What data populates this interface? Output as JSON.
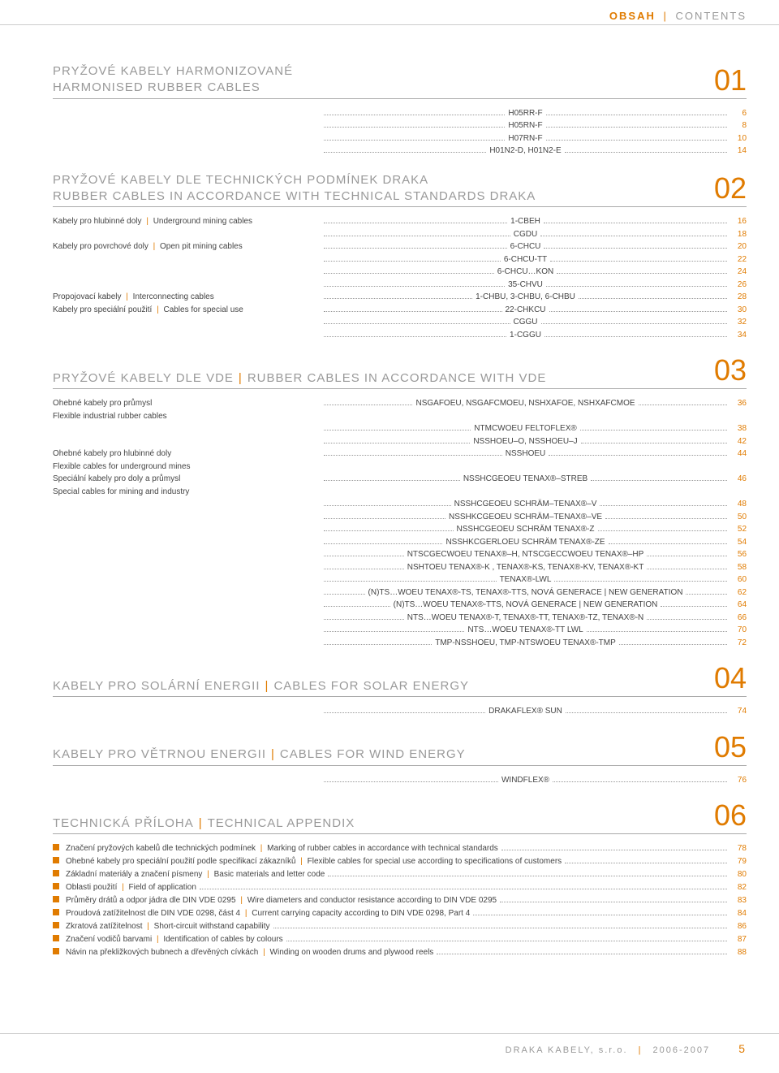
{
  "header": {
    "left": "OBSAH",
    "right": "CONTENTS"
  },
  "sections": [
    {
      "num": "01",
      "title_cz": "PRYŽOVÉ KABELY HARMONIZOVANÉ",
      "title_en": "HARMONISED RUBBER CABLES",
      "two_line": true,
      "entries": [
        {
          "left_cz": "",
          "left_en": "",
          "prod": "H05RR-F",
          "page": "6"
        },
        {
          "left_cz": "",
          "left_en": "",
          "prod": "H05RN-F",
          "page": "8"
        },
        {
          "left_cz": "",
          "left_en": "",
          "prod": "H07RN-F",
          "page": "10"
        },
        {
          "left_cz": "",
          "left_en": "",
          "prod": "H01N2-D, H01N2-E",
          "page": "14"
        }
      ]
    },
    {
      "num": "02",
      "title_cz": "PRYŽOVÉ KABELY DLE TECHNICKÝCH PODMÍNEK DRAKA",
      "title_en": "RUBBER CABLES IN ACCORDANCE WITH TECHNICAL STANDARDS DRAKA",
      "two_line": true,
      "entries": [
        {
          "left_cz": "Kabely pro hlubinné doly",
          "left_en": "Underground mining cables",
          "prod": "1-CBEH",
          "page": "16"
        },
        {
          "left_cz": "",
          "left_en": "",
          "prod": "CGDU",
          "page": "18"
        },
        {
          "left_cz": "Kabely pro povrchové doly",
          "left_en": "Open pit mining cables",
          "prod": "6-CHCU",
          "page": "20"
        },
        {
          "left_cz": "",
          "left_en": "",
          "prod": "6-CHCU-TT",
          "page": "22"
        },
        {
          "left_cz": "",
          "left_en": "",
          "prod": "6-CHCU…KON",
          "page": "24"
        },
        {
          "left_cz": "",
          "left_en": "",
          "prod": "35-CHVU",
          "page": "26"
        },
        {
          "left_cz": "Propojovací kabely",
          "left_en": "Interconnecting cables",
          "prod": "1-CHBU, 3-CHBU, 6-CHBU",
          "page": "28"
        },
        {
          "left_cz": "Kabely pro speciální použití",
          "left_en": "Cables for special use",
          "prod": "22-CHKCU",
          "page": "30"
        },
        {
          "left_cz": "",
          "left_en": "",
          "prod": "CGGU",
          "page": "32"
        },
        {
          "left_cz": "",
          "left_en": "",
          "prod": "1-CGGU",
          "page": "34"
        }
      ]
    },
    {
      "num": "03",
      "title_cz": "PRYŽOVÉ KABELY DLE VDE",
      "title_en": "RUBBER CABLES IN ACCORDANCE WITH VDE",
      "two_line": false,
      "entries": [
        {
          "left_cz": "Ohebné kabely pro průmysl",
          "left_en": "",
          "prod": "NSGAFOEU, NSGAFCMOEU, NSHXAFOE, NSHXAFCMOE",
          "page": "36",
          "sub_en": "Flexible industrial rubber cables"
        },
        {
          "left_cz": "",
          "left_en": "",
          "prod": "NTMCWOEU FELTOFLEX®",
          "page": "38"
        },
        {
          "left_cz": "",
          "left_en": "",
          "prod": "NSSHOEU–O, NSSHOEU–J",
          "page": "42"
        },
        {
          "left_cz": "Ohebné kabely pro hlubinné doly",
          "left_en": "",
          "prod": "NSSHOEU",
          "page": "44",
          "sub_en": "Flexible cables for underground mines"
        },
        {
          "left_cz": "Speciální kabely pro doly a průmysl",
          "left_en": "",
          "prod": "NSSHCGEOEU TENAX®–STREB",
          "page": "46",
          "sub_en": "Special cables for mining and industry"
        },
        {
          "left_cz": "",
          "left_en": "",
          "prod": "NSSHCGEOEU SCHRÄM–TENAX®–V",
          "page": "48"
        },
        {
          "left_cz": "",
          "left_en": "",
          "prod": "NSSHKCGEOEU SCHRÄM–TENAX®–VE",
          "page": "50"
        },
        {
          "left_cz": "",
          "left_en": "",
          "prod": "NSSHCGEOEU SCHRÄM TENAX®-Z",
          "page": "52"
        },
        {
          "left_cz": "",
          "left_en": "",
          "prod": "NSSHKCGERLOEU SCHRÄM TENAX®-ZE",
          "page": "54"
        },
        {
          "left_cz": "",
          "left_en": "",
          "prod": "NTSCGECWOEU TENAX®–H, NTSCGECCWOEU TENAX®–HP",
          "page": "56"
        },
        {
          "left_cz": "",
          "left_en": "",
          "prod": "NSHTOEU TENAX®-K , TENAX®-KS, TENAX®-KV, TENAX®-KT",
          "page": "58"
        },
        {
          "left_cz": "",
          "left_en": "",
          "prod": "TENAX®-LWL",
          "page": "60"
        },
        {
          "left_cz": "",
          "left_en": "",
          "prod": "(N)TS…WOEU TENAX®-TS, TENAX®-TTS, NOVÁ GENERACE | NEW GENERATION",
          "page": "62"
        },
        {
          "left_cz": "",
          "left_en": "",
          "prod": "(N)TS…WOEU TENAX®-TTS, NOVÁ GENERACE | NEW GENERATION",
          "page": "64"
        },
        {
          "left_cz": "",
          "left_en": "",
          "prod": "NTS…WOEU TENAX®-T, TENAX®-TT, TENAX®-TZ, TENAX®-N",
          "page": "66"
        },
        {
          "left_cz": "",
          "left_en": "",
          "prod": "NTS…WOEU TENAX®-TT LWL",
          "page": "70"
        },
        {
          "left_cz": "",
          "left_en": "",
          "prod": "TMP-NSSHOEU, TMP-NTSWOEU TENAX®-TMP",
          "page": "72"
        }
      ]
    },
    {
      "num": "04",
      "title_cz": "KABELY PRO SOLÁRNÍ ENERGII",
      "title_en": "CABLES FOR SOLAR ENERGY",
      "two_line": false,
      "entries": [
        {
          "left_cz": "",
          "left_en": "",
          "prod": "DRAKAFLEX® SUN",
          "page": "74"
        }
      ]
    },
    {
      "num": "05",
      "title_cz": "KABELY PRO VĚTRNOU ENERGII",
      "title_en": "CABLES FOR WIND ENERGY",
      "two_line": false,
      "entries": [
        {
          "left_cz": "",
          "left_en": "",
          "prod": "WINDFLEX®",
          "page": "76"
        }
      ]
    },
    {
      "num": "06",
      "title_cz": "TECHNICKÁ PŘÍLOHA",
      "title_en": "TECHNICAL APPENDIX",
      "two_line": false,
      "appendix": [
        {
          "cz": "Značení pryžových kabelů dle technických podmínek",
          "en": "Marking of rubber cables in accordance with technical standards",
          "page": "78"
        },
        {
          "cz": "Ohebné kabely pro speciální použití podle specifikací zákazníků",
          "en": "Flexible cables for special use according to specifications of customers",
          "page": "79"
        },
        {
          "cz": "Základní materiály a značení písmeny",
          "en": "Basic materials and letter code",
          "page": "80"
        },
        {
          "cz": "Oblasti použití",
          "en": "Field of application",
          "page": "82"
        },
        {
          "cz": "Průměry drátů a odpor jádra dle DIN VDE 0295",
          "en": "Wire diameters and conductor resistance according to DIN VDE 0295",
          "page": "83"
        },
        {
          "cz": "Proudová zatížitelnost dle DIN VDE 0298, část 4",
          "en": "Current carrying capacity according to DIN VDE 0298, Part 4",
          "page": "84"
        },
        {
          "cz": "Zkratová zatížitelnost",
          "en": "Short-circuit withstand capability",
          "page": "86"
        },
        {
          "cz": "Značení vodičů barvami",
          "en": "Identification of cables by colours",
          "page": "87"
        },
        {
          "cz": "Návin na překližkových bubnech a dřevěných cívkách",
          "en": "Winding on wooden drums and plywood reels",
          "page": "88"
        }
      ]
    }
  ],
  "footer": {
    "company": "DRAKA KABELY, s.r.o.",
    "year": "2006-2007",
    "page": "5"
  },
  "colors": {
    "accent": "#e07b00",
    "muted": "#999999",
    "text": "#333333"
  }
}
